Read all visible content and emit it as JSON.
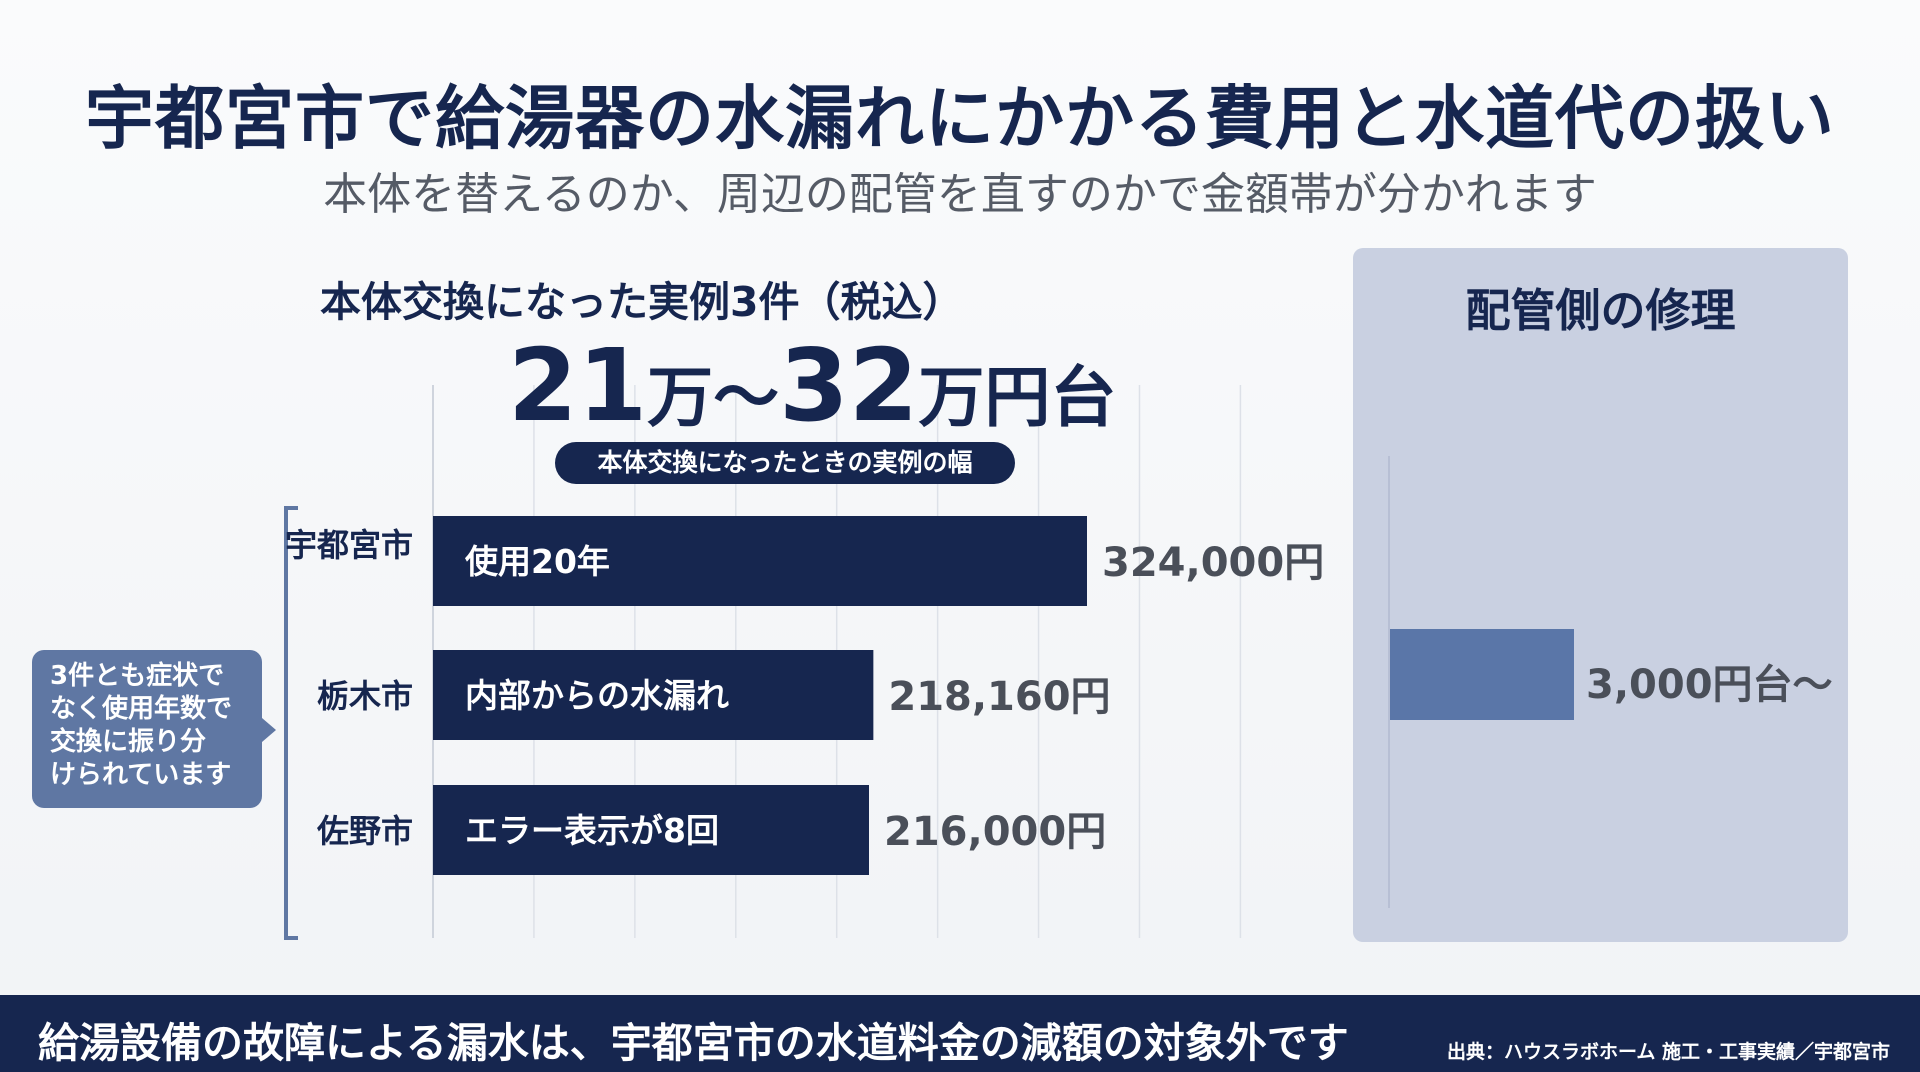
{
  "title": "宇都宮市で給湯器の水漏れにかかる費用と水道代の扱い",
  "subtitle": "本体を替えるのか、周辺の配管を直すのかで金額帯が分かれます",
  "left_section": {
    "heading": "本体交換になった実例3件（税込）",
    "range": {
      "low_num": "21",
      "low_unit": "万〜",
      "high_num": "32",
      "high_unit": "万円台",
      "caption": "本体交換になったときの実例の幅"
    },
    "callout": [
      "3件とも症状で",
      "なく使用年数で",
      "交換に振り分",
      "けられています"
    ]
  },
  "chart_data": [
    {
      "type": "bar",
      "orientation": "horizontal",
      "categories": [
        "宇都宮市",
        "栃木市",
        "佐野市"
      ],
      "bar_labels": [
        "使用20年",
        "内部からの水漏れ",
        "エラー表示が8回"
      ],
      "values": [
        324000,
        218160,
        216000
      ],
      "value_labels": [
        "324,000円",
        "218,160円",
        "216,000円"
      ],
      "xlim": [
        0,
        400000
      ],
      "grid": true,
      "bar_color": "#16264f"
    },
    {
      "type": "bar",
      "orientation": "horizontal",
      "title": "配管側の修理",
      "values": [
        3000
      ],
      "value_labels": [
        "3,000円台〜"
      ],
      "bar_color": "#5a76a8"
    }
  ],
  "footer": {
    "text": "給湯設備の故障による漏水は、宇都宮市の水道料金の減額の対象外です",
    "source": "出典：ハウスラボホーム 施工・工事実績／宇都宮市"
  },
  "colors": {
    "navy": "#16264f",
    "accent_blue": "#5a76a8",
    "panel_bg": "#c9d0e1",
    "callout_bg": "#5f77a3"
  }
}
